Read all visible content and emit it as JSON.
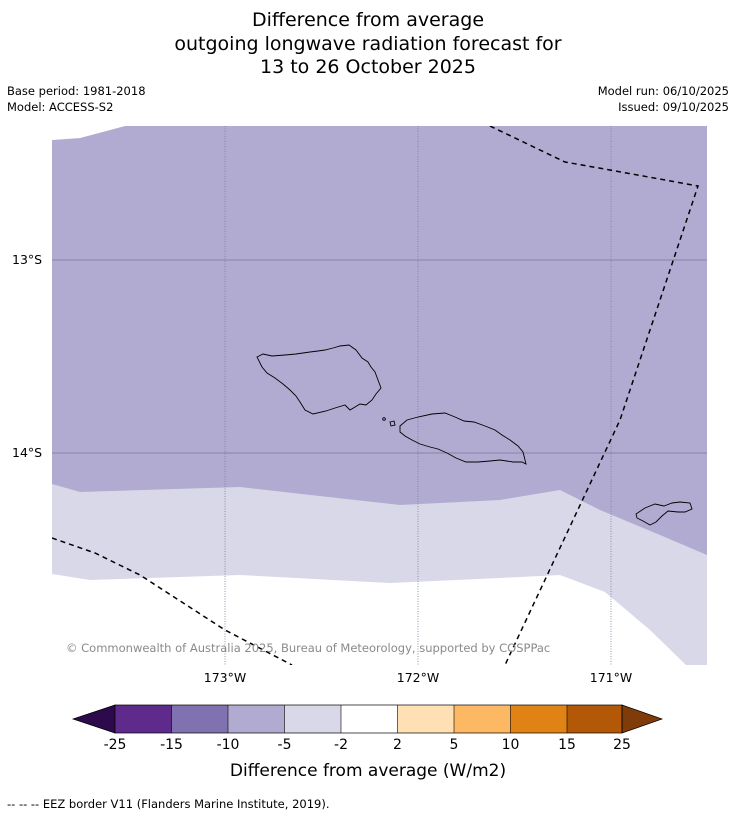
{
  "title": {
    "line1": "Difference from average",
    "line2": "outgoing longwave radiation forecast for",
    "line3": "13 to 26 October 2025"
  },
  "meta": {
    "base_period": "Base period: 1981-2018",
    "model": "Model: ACCESS-S2",
    "model_run": "Model run: 06/10/2025",
    "issued": "Issued: 09/10/2025"
  },
  "map": {
    "lat_labels": [
      "13°S",
      "14°S"
    ],
    "lon_labels": [
      "173°W",
      "172°W",
      "171°W"
    ],
    "copyright": "© Commonwealth of Australia 2025, Bureau of Meteorology, supported by COSPPac",
    "colors": {
      "band_minus10_minus5": "#b1abd2",
      "band_minus5_minus2": "#d8d8e9",
      "band_minus2_2": "#ffffff"
    }
  },
  "colorbar": {
    "ticks": [
      "-25",
      "-15",
      "-10",
      "-5",
      "-2",
      "2",
      "5",
      "10",
      "15",
      "25"
    ],
    "colors": [
      "#2c0a4b",
      "#5e2b8d",
      "#8072b0",
      "#b1abd2",
      "#d8d8e9",
      "#ffffff",
      "#fee0b4",
      "#fdb863",
      "#e08214",
      "#b35806",
      "#7f3b08"
    ],
    "label": "Difference from average (W/m2)"
  },
  "footnote": "--  --  -- EEZ border V11 (Flanders Marine Institute, 2019)."
}
